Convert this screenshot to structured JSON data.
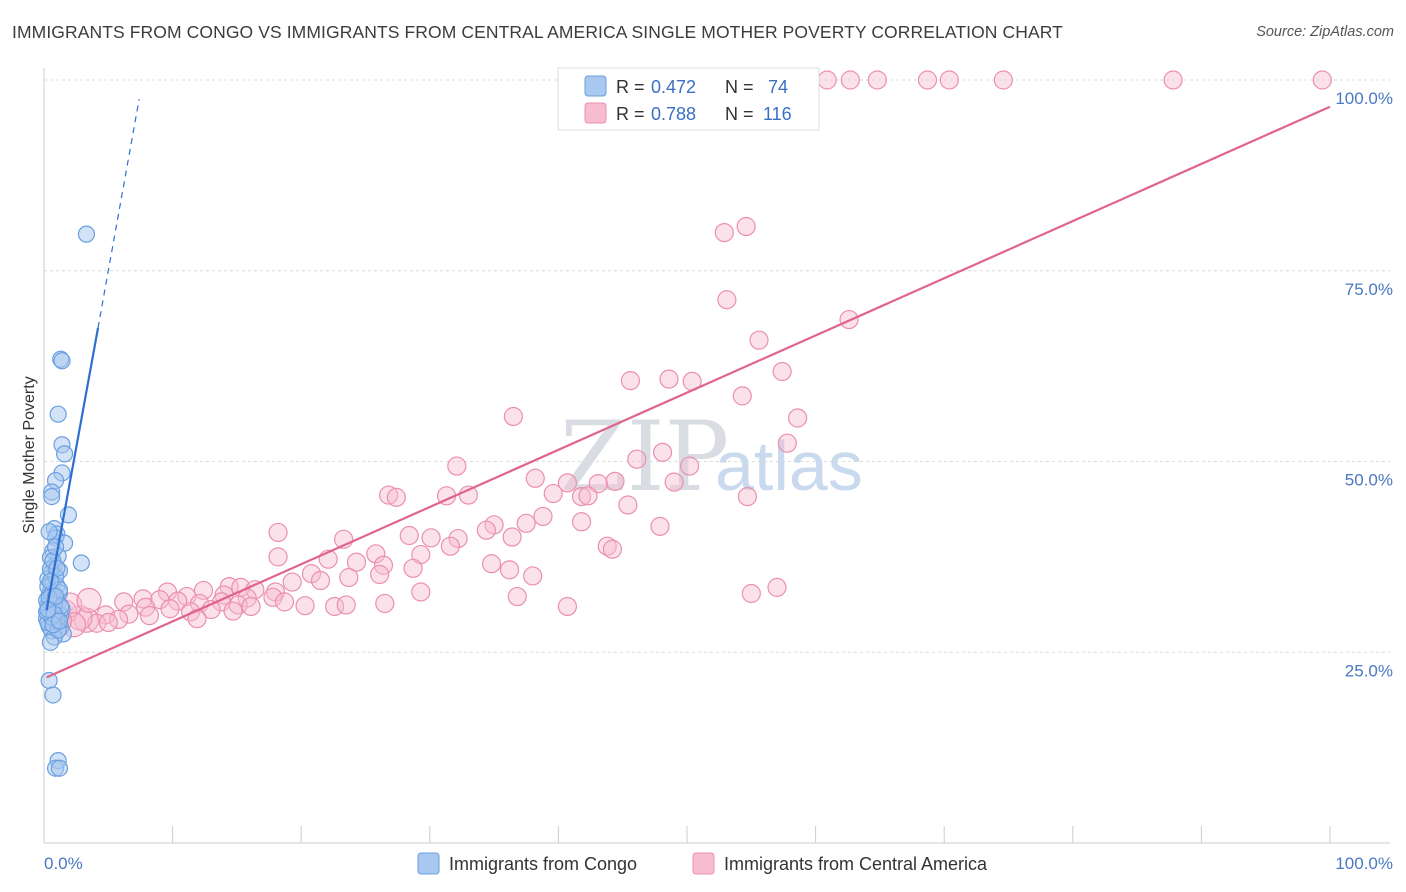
{
  "title": "IMMIGRANTS FROM CONGO VS IMMIGRANTS FROM CENTRAL AMERICA SINGLE MOTHER POVERTY CORRELATION CHART",
  "source": "Source: ZipAtlas.com",
  "watermark": {
    "zip": "ZIP",
    "atlas": "atlas"
  },
  "legend": {
    "congo": {
      "r_label": "R =",
      "r_value": "0.472",
      "n_label": "N =",
      "n_value": "74"
    },
    "central_america": {
      "r_label": "R =",
      "r_value": "0.788",
      "n_label": "N =",
      "n_value": "116"
    }
  },
  "bottom_legend": {
    "congo": "Immigrants from Congo",
    "central_america": "Immigrants from Central America"
  },
  "chart_data": {
    "type": "scatter",
    "title": "IMMIGRANTS FROM CONGO VS IMMIGRANTS FROM CENTRAL AMERICA SINGLE MOTHER POVERTY CORRELATION CHART",
    "xlabel": "",
    "ylabel": "Single Mother Poverty",
    "xlim": [
      0,
      100
    ],
    "ylim": [
      0,
      100
    ],
    "x_ticks": [
      "0.0%",
      "100.0%"
    ],
    "y_ticks": [
      {
        "value": 25,
        "label": "25.0%"
      },
      {
        "value": 50,
        "label": "50.0%"
      },
      {
        "value": 75,
        "label": "75.0%"
      },
      {
        "value": 100,
        "label": "100.0%"
      }
    ],
    "grid": true,
    "legend_position": "top-center",
    "colors": {
      "congo_fill": "#a8c8f0",
      "congo_stroke": "#6a9fe0",
      "congo_line": "#2f6fd0",
      "ca_fill": "#f7bcd0",
      "ca_stroke": "#eb8fb0",
      "ca_line": "#e0648c"
    },
    "series": [
      {
        "name": "Immigrants from Congo",
        "r": 0.472,
        "n": 74,
        "trend": {
          "x": [
            0.2,
            4.2
          ],
          "y": [
            30.5,
            67.5
          ],
          "dash_to": [
            7.4,
            97.5
          ]
        },
        "points": [
          [
            3.3,
            79.8
          ],
          [
            1.3,
            63.4
          ],
          [
            1.4,
            63.2
          ],
          [
            1.1,
            56.2
          ],
          [
            1.4,
            52.2
          ],
          [
            1.6,
            51.0
          ],
          [
            1.4,
            48.5
          ],
          [
            0.9,
            47.5
          ],
          [
            0.6,
            46.0
          ],
          [
            0.6,
            45.4
          ],
          [
            1.9,
            43.0
          ],
          [
            0.8,
            41.2
          ],
          [
            1.0,
            40.5
          ],
          [
            0.9,
            40.0
          ],
          [
            1.6,
            39.3
          ],
          [
            0.7,
            38.3
          ],
          [
            1.1,
            37.6
          ],
          [
            0.5,
            37.4
          ],
          [
            2.9,
            36.7
          ],
          [
            0.8,
            36.3
          ],
          [
            1.2,
            35.7
          ],
          [
            0.6,
            35.5
          ],
          [
            0.3,
            34.6
          ],
          [
            0.7,
            34.0
          ],
          [
            1.0,
            33.7
          ],
          [
            0.5,
            33.0
          ],
          [
            1.2,
            32.8
          ],
          [
            0.4,
            32.4
          ],
          [
            0.8,
            32.0
          ],
          [
            1.1,
            31.5
          ],
          [
            0.3,
            31.2
          ],
          [
            0.6,
            30.9
          ],
          [
            0.9,
            30.5
          ],
          [
            0.5,
            30.1
          ],
          [
            1.3,
            29.8
          ],
          [
            0.2,
            29.4
          ],
          [
            0.7,
            29.0
          ],
          [
            1.0,
            28.7
          ],
          [
            0.4,
            28.4
          ],
          [
            1.3,
            28.2
          ],
          [
            0.6,
            27.8
          ],
          [
            1.5,
            27.4
          ],
          [
            0.8,
            27.0
          ],
          [
            0.5,
            26.3
          ],
          [
            0.4,
            21.3
          ],
          [
            0.7,
            19.4
          ],
          [
            1.1,
            10.8
          ],
          [
            0.9,
            9.8
          ],
          [
            1.2,
            9.8
          ],
          [
            0.3,
            33.6
          ],
          [
            0.9,
            34.9
          ],
          [
            1.4,
            30.7
          ],
          [
            0.2,
            31.8
          ],
          [
            0.6,
            32.6
          ],
          [
            1.0,
            29.3
          ],
          [
            0.3,
            28.9
          ],
          [
            0.8,
            31.3
          ],
          [
            1.2,
            33.2
          ],
          [
            0.5,
            35.9
          ],
          [
            0.7,
            37.0
          ],
          [
            0.9,
            38.8
          ],
          [
            0.4,
            40.8
          ],
          [
            1.1,
            27.9
          ],
          [
            0.6,
            29.6
          ],
          [
            0.2,
            30.3
          ],
          [
            1.3,
            31.0
          ],
          [
            0.8,
            30.0
          ],
          [
            0.4,
            32.1
          ],
          [
            1.0,
            36.0
          ],
          [
            0.5,
            34.3
          ],
          [
            0.7,
            28.6
          ],
          [
            1.2,
            29.1
          ],
          [
            0.9,
            32.3
          ],
          [
            0.3,
            30.6
          ]
        ]
      },
      {
        "name": "Immigrants from Central America",
        "r": 0.788,
        "n": 116,
        "trend": {
          "x": [
            0.2,
            100
          ],
          "y": [
            21.7,
            96.5
          ]
        },
        "points": [
          [
            60.9,
            100.0
          ],
          [
            62.7,
            100.0
          ],
          [
            64.8,
            100.0
          ],
          [
            68.7,
            100.0
          ],
          [
            70.4,
            100.0
          ],
          [
            74.6,
            100.0
          ],
          [
            87.8,
            100.0
          ],
          [
            99.4,
            100.0
          ],
          [
            52.9,
            80.0
          ],
          [
            54.6,
            80.8
          ],
          [
            53.1,
            71.2
          ],
          [
            62.6,
            68.6
          ],
          [
            55.6,
            65.9
          ],
          [
            45.6,
            60.6
          ],
          [
            48.6,
            60.8
          ],
          [
            50.4,
            60.5
          ],
          [
            57.4,
            61.8
          ],
          [
            54.3,
            58.6
          ],
          [
            58.6,
            55.7
          ],
          [
            36.5,
            55.9
          ],
          [
            57.8,
            52.4
          ],
          [
            48.1,
            51.2
          ],
          [
            46.1,
            50.3
          ],
          [
            50.2,
            49.4
          ],
          [
            32.1,
            49.4
          ],
          [
            38.2,
            47.8
          ],
          [
            40.7,
            47.2
          ],
          [
            44.4,
            47.4
          ],
          [
            43.1,
            47.1
          ],
          [
            49.0,
            47.3
          ],
          [
            26.8,
            45.6
          ],
          [
            27.4,
            45.3
          ],
          [
            31.3,
            45.5
          ],
          [
            33.0,
            45.6
          ],
          [
            39.6,
            45.8
          ],
          [
            41.8,
            45.4
          ],
          [
            42.3,
            45.5
          ],
          [
            54.7,
            45.4
          ],
          [
            45.4,
            44.3
          ],
          [
            38.8,
            42.8
          ],
          [
            41.8,
            42.1
          ],
          [
            37.5,
            41.9
          ],
          [
            47.9,
            41.5
          ],
          [
            18.2,
            40.7
          ],
          [
            28.4,
            40.3
          ],
          [
            30.1,
            40.0
          ],
          [
            32.2,
            39.9
          ],
          [
            23.3,
            39.8
          ],
          [
            25.8,
            37.9
          ],
          [
            29.3,
            37.8
          ],
          [
            35.0,
            41.7
          ],
          [
            34.4,
            41.0
          ],
          [
            36.4,
            40.1
          ],
          [
            31.6,
            38.9
          ],
          [
            43.8,
            38.9
          ],
          [
            18.2,
            37.5
          ],
          [
            22.1,
            37.2
          ],
          [
            24.3,
            36.8
          ],
          [
            26.4,
            36.4
          ],
          [
            28.7,
            36.0
          ],
          [
            34.8,
            36.6
          ],
          [
            36.2,
            35.8
          ],
          [
            38.0,
            35.0
          ],
          [
            44.2,
            38.5
          ],
          [
            55.0,
            32.7
          ],
          [
            57.0,
            33.5
          ],
          [
            20.8,
            35.3
          ],
          [
            26.1,
            35.2
          ],
          [
            23.7,
            34.8
          ],
          [
            19.3,
            34.2
          ],
          [
            21.5,
            34.4
          ],
          [
            14.4,
            33.6
          ],
          [
            15.3,
            33.5
          ],
          [
            12.4,
            33.1
          ],
          [
            16.4,
            33.2
          ],
          [
            18.0,
            32.9
          ],
          [
            9.6,
            32.9
          ],
          [
            11.1,
            32.3
          ],
          [
            14.0,
            32.5
          ],
          [
            15.8,
            32.1
          ],
          [
            17.8,
            32.2
          ],
          [
            18.7,
            31.6
          ],
          [
            7.7,
            32.0
          ],
          [
            9.0,
            31.9
          ],
          [
            10.4,
            31.7
          ],
          [
            12.1,
            31.4
          ],
          [
            13.8,
            31.6
          ],
          [
            15.1,
            31.2
          ],
          [
            16.1,
            31.0
          ],
          [
            20.3,
            31.1
          ],
          [
            22.6,
            31.0
          ],
          [
            6.2,
            31.6
          ],
          [
            7.9,
            30.9
          ],
          [
            9.8,
            30.7
          ],
          [
            11.4,
            30.3
          ],
          [
            13.0,
            30.6
          ],
          [
            6.6,
            30.0
          ],
          [
            8.2,
            29.8
          ],
          [
            4.8,
            29.9
          ],
          [
            5.8,
            29.3
          ],
          [
            3.3,
            29.2
          ],
          [
            4.1,
            28.8
          ],
          [
            2.8,
            29.5
          ],
          [
            1.6,
            30.3
          ],
          [
            2.0,
            31.2
          ],
          [
            3.5,
            31.8
          ],
          [
            2.3,
            28.6
          ],
          [
            40.7,
            31.0
          ],
          [
            36.8,
            32.3
          ],
          [
            29.3,
            32.9
          ],
          [
            23.5,
            31.2
          ],
          [
            26.5,
            31.4
          ],
          [
            14.7,
            30.4
          ],
          [
            11.9,
            29.4
          ],
          [
            5.0,
            28.9
          ],
          [
            1.2,
            29.1
          ]
        ]
      }
    ]
  }
}
